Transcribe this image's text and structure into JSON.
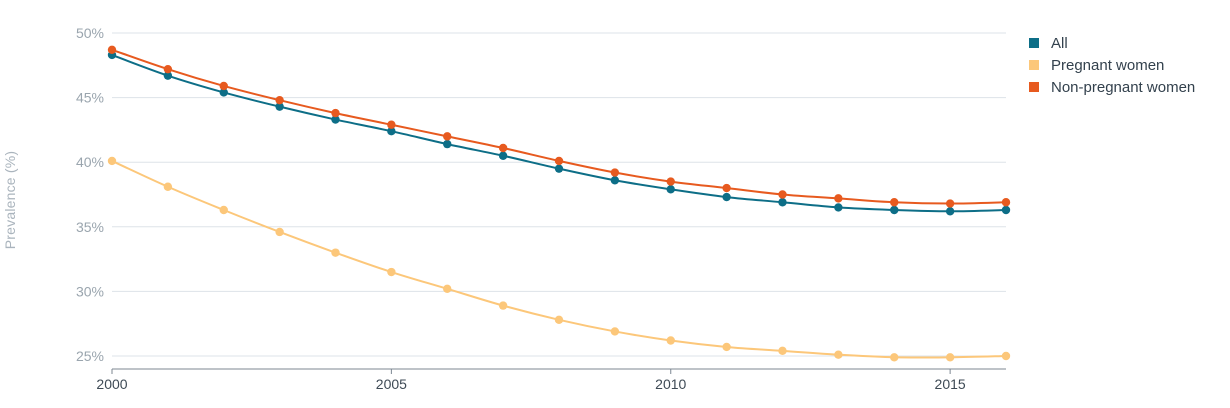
{
  "chart_data": {
    "type": "line",
    "title": "",
    "xlabel": "",
    "ylabel": "Prevalence (%)",
    "xlim": [
      2000,
      2016
    ],
    "ylim": [
      24,
      50
    ],
    "x_ticks": [
      2000,
      2005,
      2010,
      2015
    ],
    "x_tick_labels": [
      "2000",
      "2005",
      "2010",
      "2015"
    ],
    "y_ticks": [
      25,
      30,
      35,
      40,
      45,
      50
    ],
    "y_tick_labels": [
      "25%",
      "30%",
      "35%",
      "40%",
      "45%",
      "50%"
    ],
    "grid": true,
    "legend_position": "top-right",
    "x": [
      2000,
      2001,
      2002,
      2003,
      2004,
      2005,
      2006,
      2007,
      2008,
      2009,
      2010,
      2011,
      2012,
      2013,
      2014,
      2015,
      2016
    ],
    "series": [
      {
        "name": "All",
        "color": "#0d6e87",
        "values": [
          48.3,
          46.7,
          45.4,
          44.3,
          43.3,
          42.4,
          41.4,
          40.5,
          39.5,
          38.6,
          37.9,
          37.3,
          36.9,
          36.5,
          36.3,
          36.2,
          36.3
        ]
      },
      {
        "name": "Pregnant women",
        "color": "#fcc77a",
        "values": [
          40.1,
          38.1,
          36.3,
          34.6,
          33.0,
          31.5,
          30.2,
          28.9,
          27.8,
          26.9,
          26.2,
          25.7,
          25.4,
          25.1,
          24.9,
          24.9,
          25.0
        ]
      },
      {
        "name": "Non-pregnant women",
        "color": "#e75a1f",
        "values": [
          48.7,
          47.2,
          45.9,
          44.8,
          43.8,
          42.9,
          42.0,
          41.1,
          40.1,
          39.2,
          38.5,
          38.0,
          37.5,
          37.2,
          36.9,
          36.8,
          36.9
        ]
      }
    ]
  }
}
